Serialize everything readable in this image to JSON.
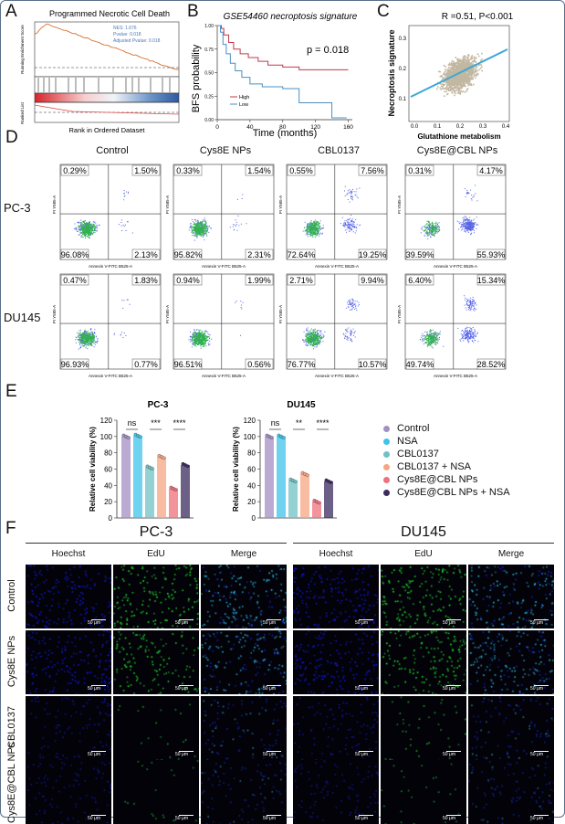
{
  "panels": {
    "A": "A",
    "B": "B",
    "C": "C",
    "D": "D",
    "E": "E",
    "F": "F"
  },
  "gsea": {
    "title": "Programmed Necrotic Cell Death",
    "nes": "NES: 1.676",
    "pvalue": "Pvalue: 0.018",
    "adj_pvalue": "Adjusted Pvalue: 0.018",
    "ylabel_es": "Running Enrichment Score",
    "ylabel_rank": "Ranked List",
    "xlabel": "Rank in Ordered Dataset"
  },
  "km": {
    "title": "GSE54460 necroptosis signature",
    "pvalue": "p = 0.018",
    "ylabel": "BFS probability",
    "xlabel": "Time (months)",
    "xticks": [
      "0",
      "40",
      "80",
      "120",
      "160"
    ],
    "yticks": [
      "0.00",
      "0.25",
      "0.50",
      "0.75",
      "1.00"
    ],
    "legend": [
      "High",
      "Low"
    ],
    "colors": {
      "high": "#c0394b",
      "low": "#4a8fc4"
    }
  },
  "scatter": {
    "title": "R =0.51, P<0.001",
    "ylabel": "Necroptosis signature",
    "xlabel": "Glutathione metabolism",
    "xticks": [
      "0.0",
      "0.1",
      "0.2",
      "0.3",
      "0.4"
    ],
    "yticks": [
      "0.1",
      "0.2",
      "0.3"
    ],
    "colors": {
      "points": "#b7aa90",
      "line": "#3aa7d8"
    }
  },
  "flow": {
    "columns": [
      "Control",
      "Cys8E NPs",
      "CBL0137",
      "Cys8E@CBL NPs"
    ],
    "rows": [
      "PC-3",
      "DU145"
    ],
    "xaxis": "Annexin V-FITC B525-A",
    "yaxis": "PI Y585-A",
    "quadrants": [
      [
        [
          "0.29%",
          "1.50%",
          "96.08%",
          "2.13%"
        ],
        [
          "0.33%",
          "1.54%",
          "95.82%",
          "2.31%"
        ],
        [
          "0.55%",
          "7.56%",
          "72.64%",
          "19.25%"
        ],
        [
          "0.31%",
          "4.17%",
          "39.59%",
          "55.93%"
        ]
      ],
      [
        [
          "0.47%",
          "1.83%",
          "96.93%",
          "0.77%"
        ],
        [
          "0.94%",
          "1.99%",
          "96.51%",
          "0.56%"
        ],
        [
          "2.71%",
          "9.94%",
          "76.77%",
          "10.57%"
        ],
        [
          "6.40%",
          "15.34%",
          "49.74%",
          "28.52%"
        ]
      ]
    ]
  },
  "chart_data": [
    {
      "type": "bar",
      "title": "PC-3",
      "ylabel": "Relative cell viability (%)",
      "ylim": [
        0,
        120
      ],
      "yticks": [
        "0",
        "20",
        "40",
        "60",
        "80",
        "100",
        "120"
      ],
      "categories": [
        "Control",
        "NSA",
        "CBL0137",
        "CBL0137 + NSA",
        "Cys8E@CBL NPs",
        "Cys8E@CBL NPs + NSA"
      ],
      "values": [
        100,
        101,
        62,
        75,
        36,
        65
      ],
      "significance": [
        "ns",
        "***",
        "****"
      ]
    },
    {
      "type": "bar",
      "title": "DU145",
      "ylabel": "Relative cell viability (%)",
      "ylim": [
        0,
        120
      ],
      "yticks": [
        "0",
        "20",
        "40",
        "60",
        "80",
        "100",
        "120"
      ],
      "categories": [
        "Control",
        "NSA",
        "CBL0137",
        "CBL0137 + NSA",
        "Cys8E@CBL NPs",
        "Cys8E@CBL NPs + NSA"
      ],
      "values": [
        100,
        100,
        46,
        54,
        20,
        45
      ],
      "significance": [
        "ns",
        "**",
        "****"
      ]
    }
  ],
  "legendE": {
    "items": [
      "Control",
      "NSA",
      "CBL0137",
      "CBL0137 + NSA",
      "Cys8E@CBL NPs",
      "Cys8E@CBL NPs + NSA"
    ],
    "colors": [
      "#a48fc4",
      "#3fc3e8",
      "#6fc1c4",
      "#f4a582",
      "#ef6f7b",
      "#3b2b5e"
    ]
  },
  "edu": {
    "groups": [
      "PC-3",
      "DU145"
    ],
    "channels": [
      "Hoechst",
      "EdU",
      "Merge"
    ],
    "rows": [
      "Control",
      "Cys8E NPs",
      "CBL0137",
      "Cys8E@CBL NPs"
    ],
    "scalebar": "50 μm"
  }
}
